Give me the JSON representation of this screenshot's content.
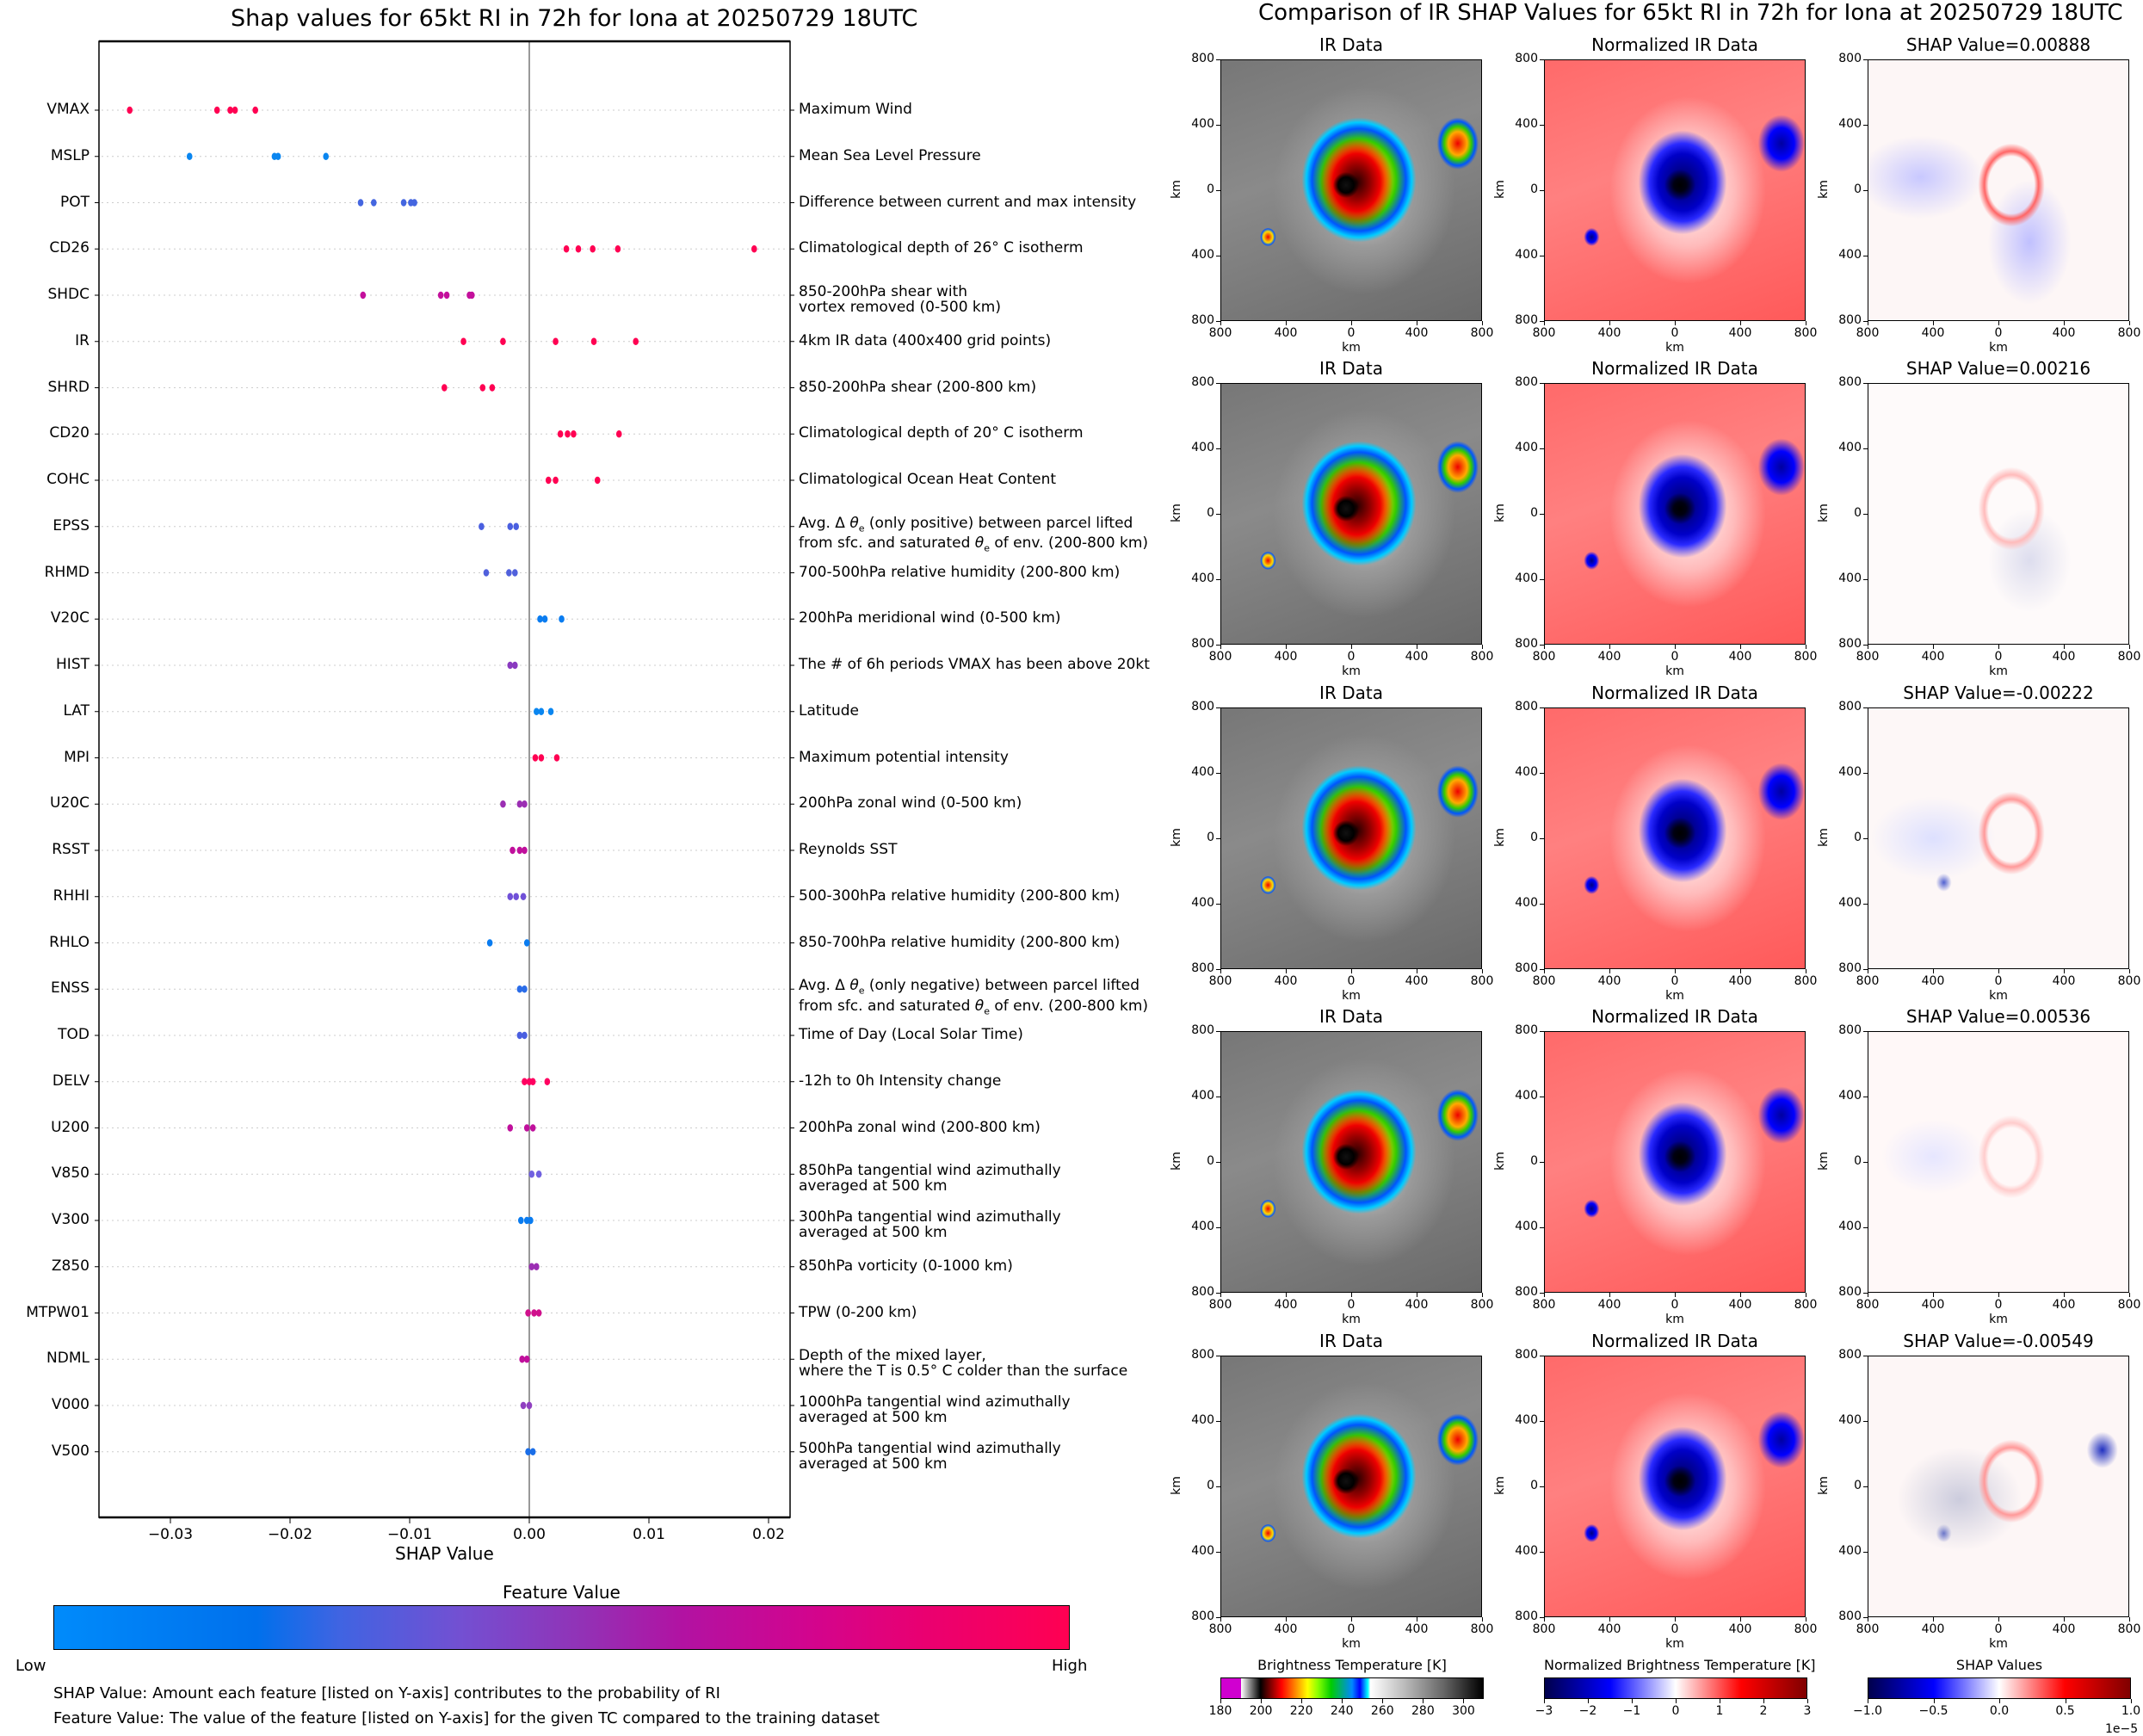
{
  "left_chart": {
    "title": "Shap values for 65kt RI in 72h for Iona at 20250729 18UTC",
    "xlabel": "SHAP Value",
    "xticks": [
      "−0.03",
      "−0.02",
      "−0.01",
      "0.00",
      "0.01",
      "0.02"
    ],
    "colorbar": {
      "title": "Feature Value",
      "low": "Low",
      "high": "High",
      "colors": [
        "#008bfb",
        "#0066e8",
        "#4f5fe0",
        "#7b4fcb",
        "#9b2eb3",
        "#c0109c",
        "#e00080",
        "#ff0052"
      ]
    },
    "notes": [
      "SHAP Value: Amount each feature [listed on Y-axis] contributes to the probability of RI",
      "Feature Value: The value of the feature [listed on Y-axis] for the given TC compared to the training dataset"
    ]
  },
  "chart_data": [
    {
      "type": "scatter",
      "title": "Shap values for 65kt RI in 72h for Iona at 20250729 18UTC",
      "xlabel": "SHAP Value",
      "ylabel": "",
      "xlim": [
        -0.0358,
        0.0215
      ],
      "grid": "dotted horizontal per feature",
      "legend": "colorbar bottom (Feature Value Low→High)",
      "features": [
        {
          "name": "VMAX",
          "desc": "Maximum Wind",
          "shap": [
            -0.0334,
            -0.0261,
            -0.025,
            -0.0246,
            -0.0229
          ],
          "color": "#ff0052"
        },
        {
          "name": "MSLP",
          "desc": "Mean Sea Level Pressure",
          "shap": [
            -0.0284,
            -0.0213,
            -0.021,
            -0.017
          ],
          "color": "#0a86f0"
        },
        {
          "name": "POT",
          "desc": "Difference between current and max intensity",
          "shap": [
            -0.0141,
            -0.013,
            -0.0105,
            -0.0099,
            -0.0096
          ],
          "color": "#4466e0"
        },
        {
          "name": "CD26",
          "desc": "Climatological depth of 26° C isotherm",
          "shap": [
            0.0031,
            0.0041,
            0.0053,
            0.0074,
            0.0188
          ],
          "color": "#ff0052"
        },
        {
          "name": "SHDC",
          "desc": "850-200hPa shear with\nvortex removed (0-500 km)",
          "shap": [
            -0.0139,
            -0.0074,
            -0.0069,
            -0.005,
            -0.0048
          ],
          "color": "#c4109c"
        },
        {
          "name": "IR",
          "desc": "4km IR data (400x400 grid points)",
          "shap": [
            -0.0055,
            -0.0022,
            0.0022,
            0.0054,
            0.0089
          ],
          "color": "#ff0052"
        },
        {
          "name": "SHRD",
          "desc": "850-200hPa shear (200-800 km)",
          "shap": [
            -0.0071,
            -0.0039,
            -0.0031
          ],
          "color": "#ff0052"
        },
        {
          "name": "CD20",
          "desc": "Climatological depth of 20° C isotherm",
          "shap": [
            0.0026,
            0.0032,
            0.0037,
            0.0075
          ],
          "color": "#ff0052"
        },
        {
          "name": "COHC",
          "desc": "Climatological Ocean Heat Content",
          "shap": [
            0.0016,
            0.0022,
            0.0057
          ],
          "color": "#ff0052"
        },
        {
          "name": "EPSS",
          "desc": "Avg. Δ θe (only positive) between parcel lifted\nfrom sfc. and saturated θe of env. (200-800 km)",
          "shap": [
            -0.004,
            -0.0016,
            -0.0011
          ],
          "color": "#4a5fe0"
        },
        {
          "name": "RHMD",
          "desc": "700-500hPa relative humidity (200-800 km)",
          "shap": [
            -0.0036,
            -0.0017,
            -0.0012
          ],
          "color": "#5060dc"
        },
        {
          "name": "V20C",
          "desc": "200hPa meridional wind (0-500 km)",
          "shap": [
            0.0009,
            0.0013,
            0.0027
          ],
          "color": "#0a7cf0"
        },
        {
          "name": "HIST",
          "desc": "The # of 6h periods VMAX has been above 20kt",
          "shap": [
            -0.0016,
            -0.0012
          ],
          "color": "#8a3ac0"
        },
        {
          "name": "LAT",
          "desc": "Latitude",
          "shap": [
            0.0006,
            0.001,
            0.0018
          ],
          "color": "#0a86f0"
        },
        {
          "name": "MPI",
          "desc": "Maximum potential intensity",
          "shap": [
            0.0005,
            0.001,
            0.0023
          ],
          "color": "#ff0052"
        },
        {
          "name": "U20C",
          "desc": "200hPa zonal wind (0-500 km)",
          "shap": [
            -0.0022,
            -0.0008,
            -0.0004
          ],
          "color": "#9b2eb3"
        },
        {
          "name": "RSST",
          "desc": "Reynolds SST",
          "shap": [
            -0.0014,
            -0.0008,
            -0.0004
          ],
          "color": "#c0109c"
        },
        {
          "name": "RHHI",
          "desc": "500-300hPa relative humidity (200-800 km)",
          "shap": [
            -0.0016,
            -0.0011,
            -0.0005
          ],
          "color": "#7050d8"
        },
        {
          "name": "RHLO",
          "desc": "850-700hPa relative humidity (200-800 km)",
          "shap": [
            -0.0033,
            -0.0002
          ],
          "color": "#0a7cf0"
        },
        {
          "name": "ENSS",
          "desc": "Avg. Δ θe (only negative) between parcel lifted\nfrom sfc. and saturated θe of env. (200-800 km)",
          "shap": [
            -0.0008,
            -0.0004
          ],
          "color": "#2a6ce8"
        },
        {
          "name": "TOD",
          "desc": "Time of Day (Local Solar Time)",
          "shap": [
            -0.0008,
            -0.0004
          ],
          "color": "#4a5fe0"
        },
        {
          "name": "DELV",
          "desc": "-12h to 0h Intensity change",
          "shap": [
            -0.0004,
            0.0,
            0.0003,
            0.0015
          ],
          "color": "#ff0060"
        },
        {
          "name": "U200",
          "desc": "200hPa zonal wind (200-800 km)",
          "shap": [
            -0.0016,
            -0.0002,
            0.0003
          ],
          "color": "#c0109c"
        },
        {
          "name": "V850",
          "desc": "850hPa tangential wind azimuthally\naveraged at 500 km",
          "shap": [
            0.0002,
            0.0008
          ],
          "color": "#7060e0"
        },
        {
          "name": "V300",
          "desc": "300hPa tangential wind azimuthally\naveraged at 500 km",
          "shap": [
            -0.0007,
            -0.0002,
            0.0001
          ],
          "color": "#0a7cf0"
        },
        {
          "name": "Z850",
          "desc": "850hPa vorticity (0-1000 km)",
          "shap": [
            0.0002,
            0.0006
          ],
          "color": "#9b2eb3"
        },
        {
          "name": "MTPW01",
          "desc": "TPW (0-200 km)",
          "shap": [
            -0.0001,
            0.0004,
            0.0008
          ],
          "color": "#d0108c"
        },
        {
          "name": "NDML",
          "desc": "Depth of the mixed layer,\nwhere the T is 0.5° C colder than the surface",
          "shap": [
            -0.0006,
            -0.0002
          ],
          "color": "#c0109c"
        },
        {
          "name": "V000",
          "desc": "1000hPa tangential wind azimuthally\naveraged at 500 km",
          "shap": [
            -0.0005,
            0.0
          ],
          "color": "#9040c0"
        },
        {
          "name": "V500",
          "desc": "500hPa tangential wind azimuthally\naveraged at 500 km",
          "shap": [
            -0.0001,
            0.0003
          ],
          "color": "#1a6ee8"
        }
      ]
    },
    {
      "type": "heatmap",
      "title": "Comparison of IR SHAP Values for 65kt RI in 72h for Iona at 20250729 18UTC",
      "columns": [
        "IR Data",
        "Normalized IR Data",
        "SHAP Value"
      ],
      "rows_shap_values": [
        0.00888,
        0.00216,
        -0.00222,
        0.00536,
        -0.00549
      ],
      "x_ticks": [
        "800",
        "400",
        "0",
        "400",
        "800"
      ],
      "y_ticks": [
        "800",
        "400",
        "0",
        "400",
        "800"
      ],
      "xlabel": "km",
      "ylabel": "km",
      "colorbars": [
        {
          "title": "Brightness Temperature [K]",
          "ticks": [
            "180",
            "200",
            "220",
            "240",
            "260",
            "280",
            "300"
          ],
          "range": [
            180,
            310
          ]
        },
        {
          "title": "Normalized Brightness Temperature [K]",
          "ticks": [
            "−3",
            "−2",
            "−1",
            "0",
            "1",
            "2",
            "3"
          ],
          "range": [
            -3,
            3
          ]
        },
        {
          "title": "SHAP Values",
          "ticks": [
            "−1.0",
            "−0.5",
            "0.0",
            "0.5",
            "1.0"
          ],
          "range": [
            -1.0,
            1.0
          ],
          "scale_label": "1e−5"
        }
      ]
    }
  ],
  "right_panel": {
    "title": "Comparison of IR SHAP Values for 65kt RI in 72h for Iona at 20250729 18UTC",
    "ir_title": "IR Data",
    "norm_title": "Normalized IR Data",
    "shap_prefix": "SHAP Value=",
    "shap_values": [
      "0.00888",
      "0.00216",
      "-0.00222",
      "0.00536",
      "-0.00549"
    ],
    "km": "km"
  }
}
